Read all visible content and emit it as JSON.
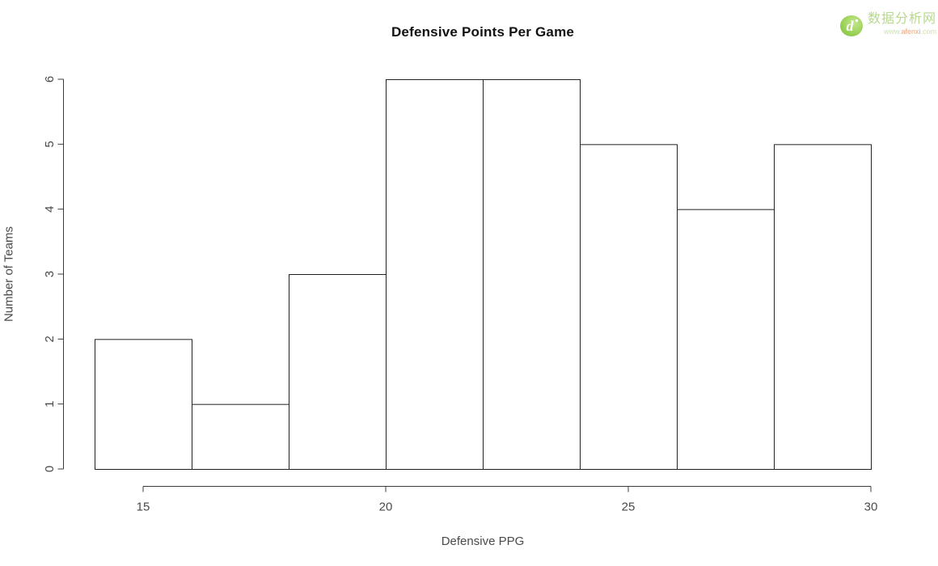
{
  "chart_data": {
    "type": "bar",
    "subtype": "histogram",
    "title": "Defensive Points Per Game",
    "xlabel": "Defensive PPG",
    "ylabel": "Number of Teams",
    "bin_edges": [
      14,
      16,
      18,
      20,
      22,
      24,
      26,
      28,
      30
    ],
    "counts": [
      2,
      1,
      3,
      6,
      6,
      5,
      4,
      5
    ],
    "x_ticks": [
      15,
      20,
      25,
      30
    ],
    "y_ticks": [
      0,
      1,
      2,
      3,
      4,
      5,
      6
    ],
    "xlim": [
      14,
      30
    ],
    "ylim": [
      0,
      6
    ],
    "grid": false,
    "legend_position": "none",
    "bar_fill": "#ffffff",
    "bar_border": "#222222",
    "axis_color": "#3c3c3c",
    "tick_text_color": "#4a4a4a",
    "title_color": "#121212"
  },
  "watermark": {
    "site_name": "数据分析网",
    "site_url_prefix": "www.",
    "site_url_domain": "afenxi",
    "site_url_suffix": ".com",
    "logo_letter": "d",
    "logo_green_dark": "#7dbf3a",
    "logo_green_light": "#b4e077",
    "name_color": "#b7d98e",
    "url_color": "#cde2b4",
    "domain_color": "#f2a477"
  }
}
